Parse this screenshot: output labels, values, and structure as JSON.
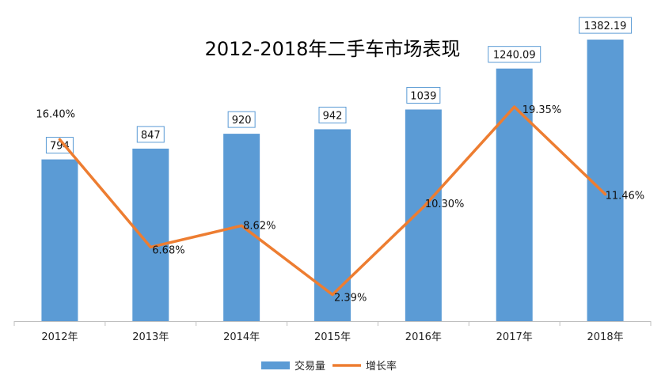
{
  "chart_data": {
    "type": "bar",
    "title": "2012-2018年二手车市场表现",
    "categories": [
      "2012年",
      "2013年",
      "2014年",
      "2015年",
      "2016年",
      "2017年",
      "2018年"
    ],
    "series": [
      {
        "name": "交易量",
        "type": "bar",
        "values": [
          794,
          847,
          920,
          942,
          1039,
          1240.09,
          1382.19
        ],
        "labels": [
          "794",
          "847",
          "920",
          "942",
          "1039",
          "1240.09",
          "1382.19"
        ],
        "color": "#5B9BD5",
        "ylim": [
          0,
          1600
        ]
      },
      {
        "name": "增长率",
        "type": "line",
        "values": [
          16.4,
          6.68,
          8.62,
          2.39,
          10.3,
          19.35,
          11.46
        ],
        "labels": [
          "16.40%",
          "6.68%",
          "8.62%",
          "2.39%",
          "10.30%",
          "19.35%",
          "11.46%"
        ],
        "color": "#ED7D31",
        "ylim": [
          0,
          20
        ]
      }
    ],
    "legend_position": "bottom",
    "grid": false
  }
}
